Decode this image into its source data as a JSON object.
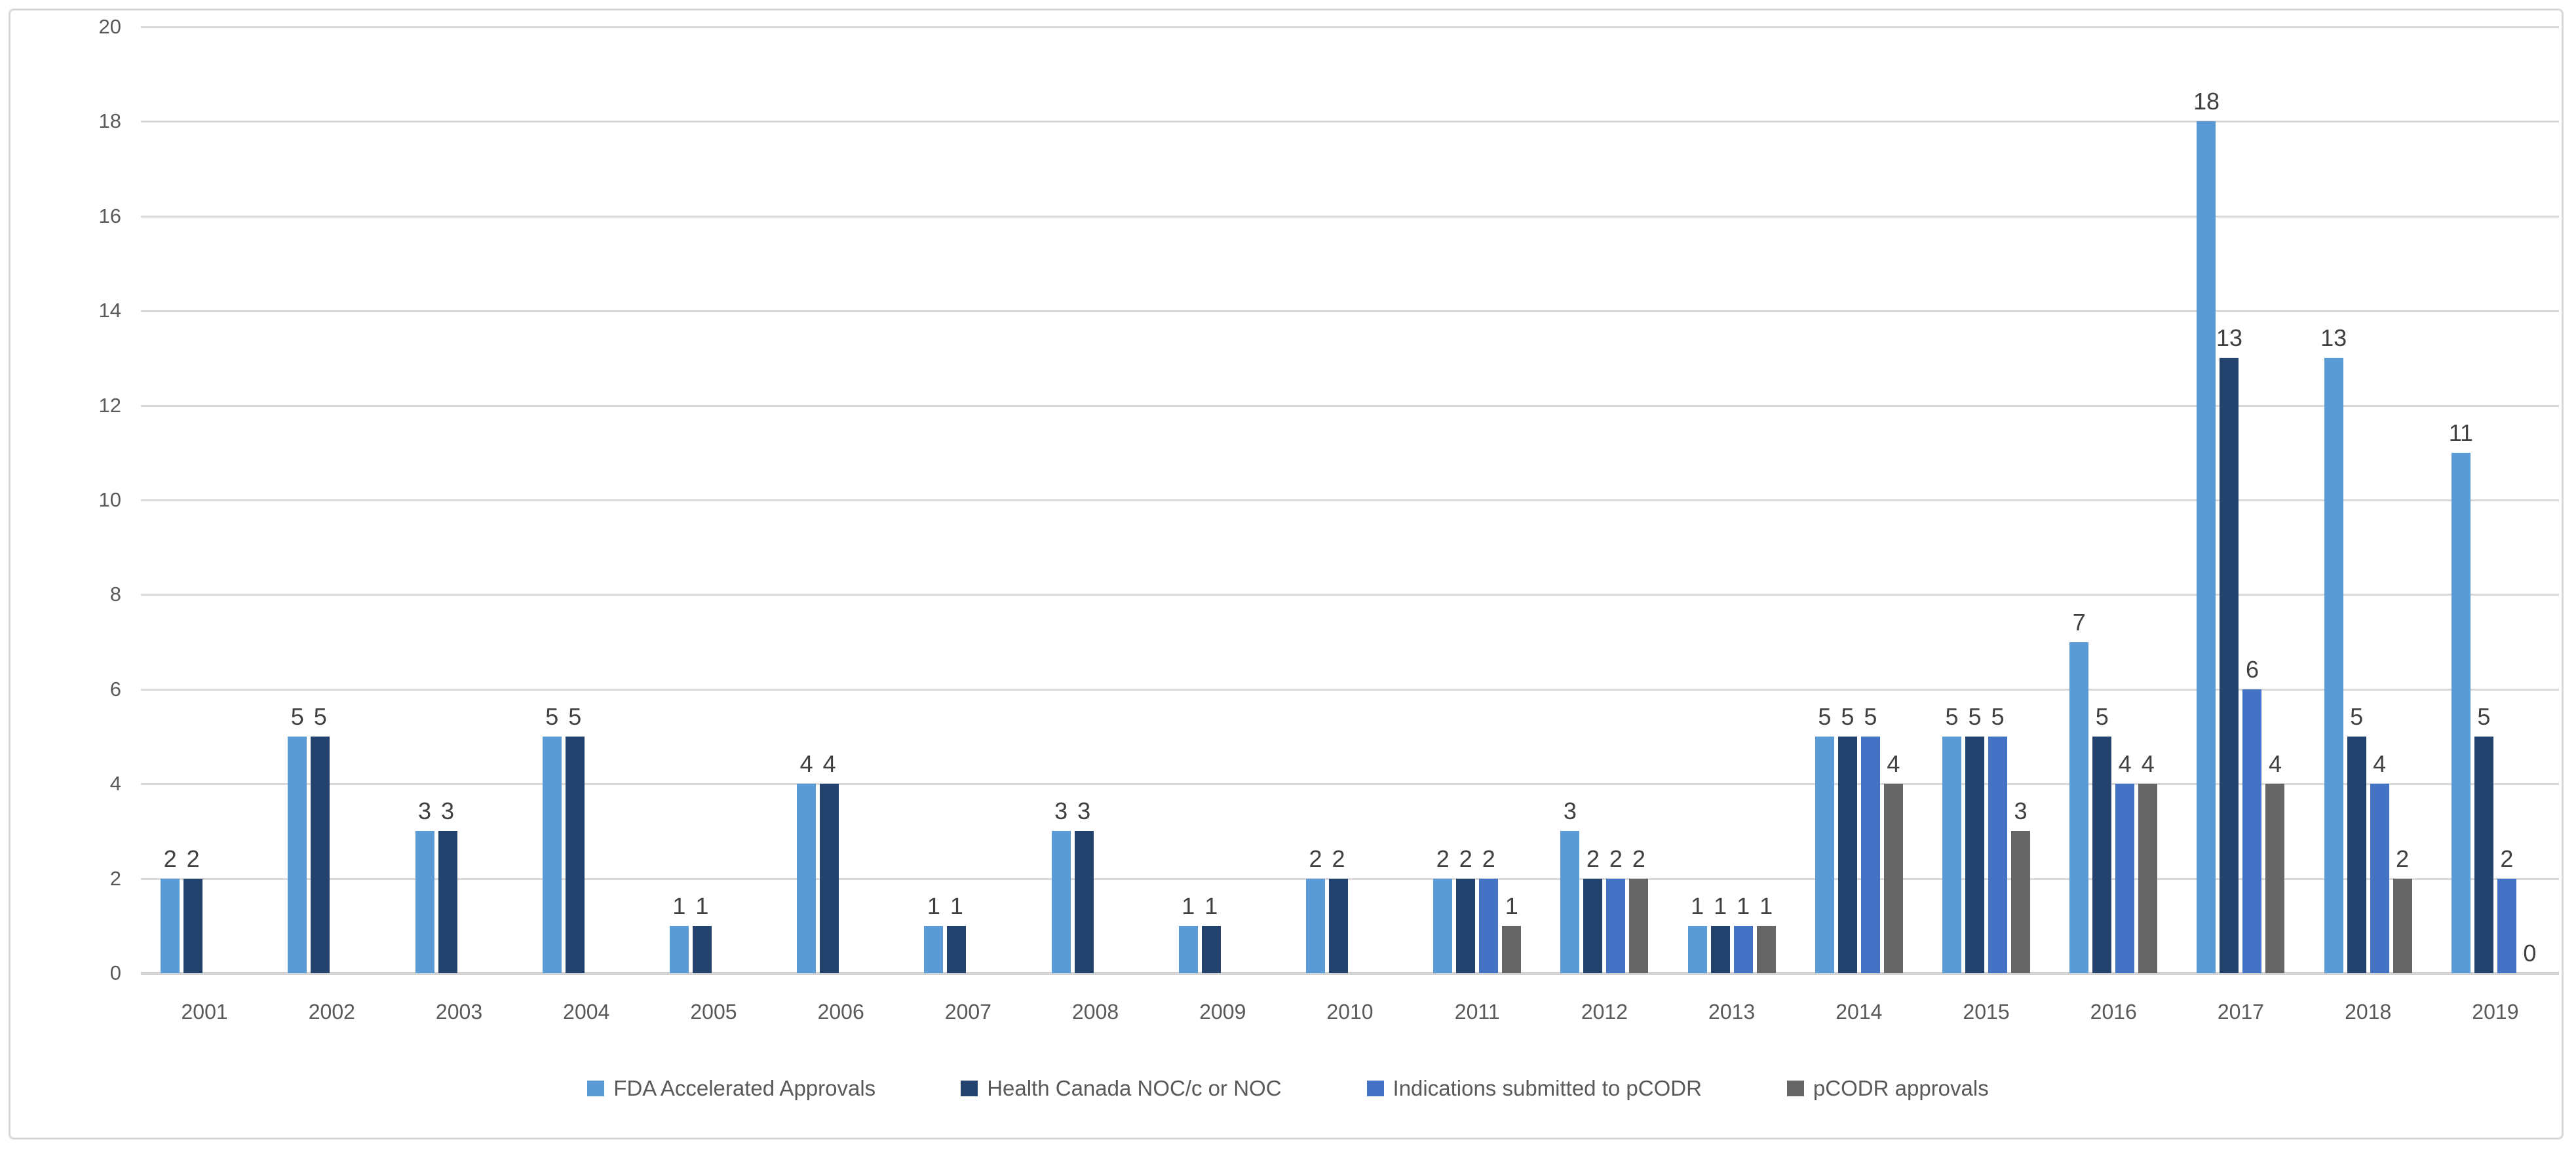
{
  "colors": {
    "fda": "#5B9BD5",
    "health_canada": "#24426E",
    "pcodr_submitted": "#4472C4",
    "pcodr_approvals": "#666666",
    "gridline": "#D9D9D9",
    "axis_line": "#D2D2D2",
    "tick_label": "#595959",
    "data_label": "#404040"
  },
  "chart_data": {
    "type": "bar",
    "title": "",
    "xlabel": "",
    "ylabel": "",
    "ylim": [
      0,
      20
    ],
    "ystep": 2,
    "grid": "horizontal",
    "legend_position": "bottom-center",
    "categories": [
      "2001",
      "2002",
      "2003",
      "2004",
      "2005",
      "2006",
      "2007",
      "2008",
      "2009",
      "2010",
      "2011",
      "2012",
      "2013",
      "2014",
      "2015",
      "2016",
      "2017",
      "2018",
      "2019"
    ],
    "series": [
      {
        "name": "FDA Accelerated Approvals",
        "color": "#5B9BD5",
        "values": [
          2,
          5,
          3,
          5,
          1,
          4,
          1,
          3,
          1,
          2,
          2,
          3,
          1,
          5,
          5,
          7,
          18,
          13,
          11
        ]
      },
      {
        "name": "Health Canada NOC/c or NOC",
        "color": "#24426E",
        "values": [
          2,
          5,
          3,
          5,
          1,
          4,
          1,
          3,
          1,
          2,
          2,
          2,
          1,
          5,
          5,
          5,
          13,
          5,
          5
        ]
      },
      {
        "name": "Indications submitted to pCODR",
        "color": "#4472C4",
        "values": [
          null,
          null,
          null,
          null,
          null,
          null,
          null,
          null,
          null,
          null,
          2,
          2,
          1,
          5,
          5,
          4,
          6,
          4,
          2
        ]
      },
      {
        "name": "pCODR approvals",
        "color": "#666666",
        "values": [
          null,
          null,
          null,
          null,
          null,
          null,
          null,
          null,
          null,
          null,
          1,
          2,
          1,
          4,
          3,
          4,
          4,
          2,
          0
        ]
      }
    ]
  }
}
